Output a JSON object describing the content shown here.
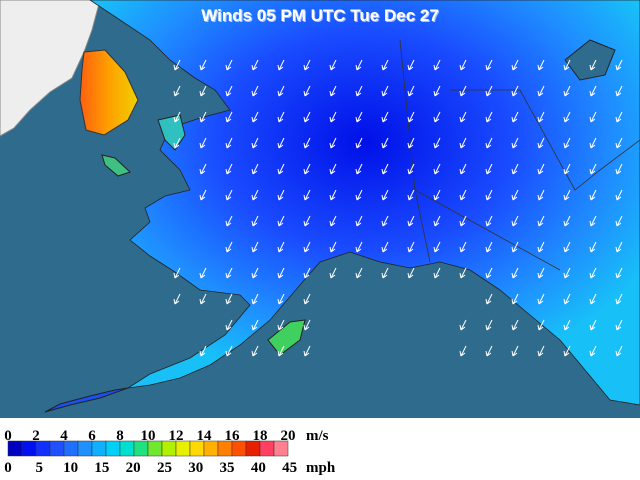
{
  "title": "Winds 05 PM UTC Tue Dec 27",
  "legend": {
    "ms_ticks": [
      0,
      2,
      4,
      6,
      8,
      10,
      12,
      14,
      16,
      18,
      20
    ],
    "ms_unit": "m/s",
    "mph_ticks": [
      0,
      5,
      10,
      15,
      20,
      25,
      30,
      35,
      40,
      45
    ],
    "mph_unit": "mph",
    "colors": [
      "#0000c0",
      "#0010f0",
      "#1030ff",
      "#2050ff",
      "#2070ff",
      "#2090ff",
      "#10b0ff",
      "#00d0f8",
      "#00e0d0",
      "#20e080",
      "#70e830",
      "#b0f000",
      "#e8f000",
      "#ffd800",
      "#ffb000",
      "#ff8000",
      "#ff5000",
      "#e82000",
      "#ff4060",
      "#ff8090"
    ]
  }
}
